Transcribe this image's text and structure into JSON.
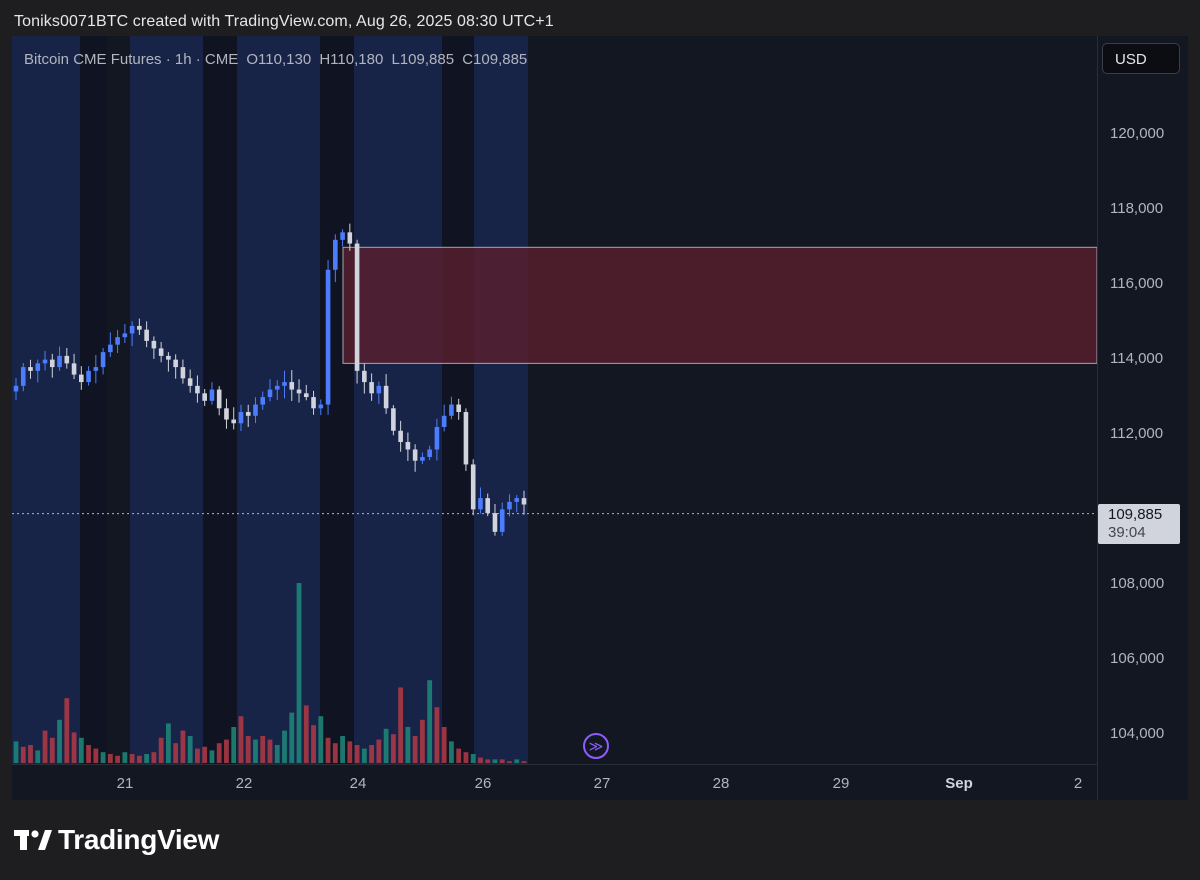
{
  "header": {
    "text": "Toniks0071BTC created with TradingView.com, Aug 26, 2025 08:30 UTC+1"
  },
  "legend": {
    "symbol": "Bitcoin CME Futures · 1h · CME",
    "open": "O110,130",
    "high": "H110,180",
    "low": "L109,885",
    "close": "C109,885"
  },
  "price_scale": {
    "currency": "USD",
    "last_price": "109,885",
    "countdown": "39:04"
  },
  "logo": {
    "text": "TradingView"
  },
  "colors": {
    "background": "#131722",
    "session_band": "#172447",
    "bull_candle": "#4d7dff",
    "bear_candle": "#d1d4dc",
    "bull_volume": "#1f8a7a",
    "bear_volume": "#b33a45",
    "zone_fill": "#5a1f2e",
    "zone_border": "#c9c9d1"
  },
  "icons": {
    "goto_realtime": "scroll-to-realtime-icon",
    "logo": "tradingview-logo-icon"
  },
  "chart_data": {
    "type": "candlestick",
    "interval": "1h",
    "ylim": [
      103000,
      122000
    ],
    "y_ticks": [
      "104,000",
      "106,000",
      "108,000",
      "110,000",
      "112,000",
      "114,000",
      "116,000",
      "118,000",
      "120,000"
    ],
    "y_tick_values": [
      104000,
      106000,
      108000,
      110000,
      112000,
      114000,
      116000,
      118000,
      120000
    ],
    "x_ticks": [
      "21",
      "22",
      "24",
      "26",
      "27",
      "28",
      "29",
      "Sep",
      "2"
    ],
    "last_price": 109885,
    "zone": {
      "top": 117000,
      "bottom": 113900
    },
    "price_path": [
      113300,
      113800,
      113700,
      113900,
      114000,
      113800,
      114100,
      113900,
      113600,
      113400,
      113700,
      113800,
      114200,
      114400,
      114600,
      114700,
      114900,
      114800,
      114500,
      114300,
      114100,
      114000,
      113800,
      113500,
      113300,
      113100,
      112900,
      113200,
      112700,
      112400,
      112300,
      112600,
      112500,
      112800,
      113000,
      113200,
      113300,
      113400,
      113200,
      113100,
      113000,
      112700,
      112800,
      116400,
      117200,
      117400,
      117100,
      113700,
      113400,
      113100,
      113300,
      112700,
      112100,
      111800,
      111600,
      111300,
      111400,
      111600,
      112200,
      112500,
      112800,
      112600,
      111200,
      110000,
      110300,
      109900,
      109400,
      110000,
      110200,
      110300,
      110130
    ],
    "volume_path": [
      1.2,
      0.9,
      1.0,
      0.7,
      1.8,
      1.4,
      2.4,
      3.6,
      1.7,
      1.4,
      1.0,
      0.8,
      0.6,
      0.5,
      0.4,
      0.6,
      0.5,
      0.4,
      0.5,
      0.6,
      1.4,
      2.2,
      1.1,
      1.8,
      1.5,
      0.8,
      0.9,
      0.7,
      1.1,
      1.3,
      2.0,
      2.6,
      1.5,
      1.3,
      1.5,
      1.3,
      1.0,
      1.8,
      2.8,
      10.0,
      3.2,
      2.1,
      2.6,
      1.4,
      1.1,
      1.5,
      1.2,
      1.0,
      0.8,
      1.0,
      1.3,
      1.9,
      1.6,
      4.2,
      2.0,
      1.5,
      2.4,
      4.6,
      3.1,
      2.0,
      1.2,
      0.8,
      0.6,
      0.5,
      0.3,
      0.2,
      0.2,
      0.2,
      0.1,
      0.2,
      0.1
    ]
  }
}
